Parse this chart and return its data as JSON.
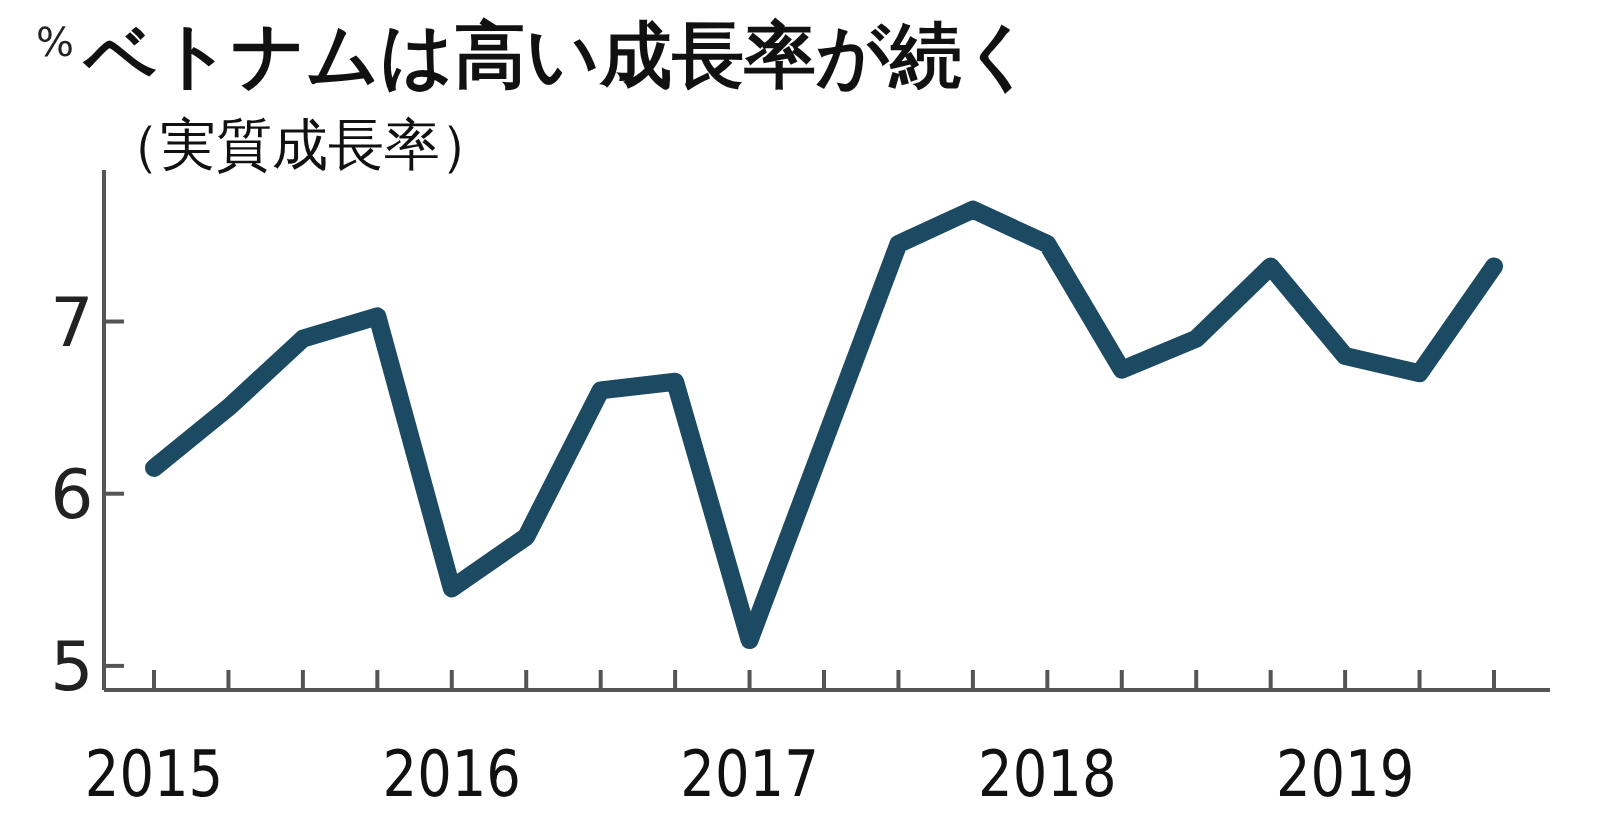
{
  "chart_data": {
    "type": "line",
    "title": "ベトナムは高い成長率が続く",
    "subtitle": "（実質成長率）",
    "ylabel": "%",
    "categories": [
      "2015",
      null,
      null,
      null,
      "2016",
      null,
      null,
      null,
      "2017",
      null,
      null,
      null,
      "2018",
      null,
      null,
      null,
      "2019",
      null,
      null
    ],
    "series": [
      {
        "color": "#1b4a62",
        "values": [
          6.15,
          6.5,
          6.9,
          7.03,
          5.45,
          5.75,
          6.6,
          6.65,
          5.15,
          6.3,
          7.45,
          7.65,
          7.45,
          6.72,
          6.9,
          7.32,
          6.8,
          6.7,
          7.32
        ]
      }
    ],
    "ylim": [
      4.86,
      7.88
    ],
    "yticks": [
      5,
      6,
      7
    ],
    "grid": false,
    "marker": "none",
    "line_style": "solid"
  }
}
